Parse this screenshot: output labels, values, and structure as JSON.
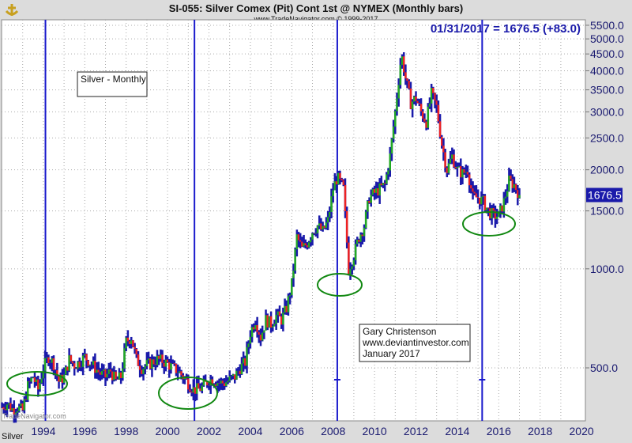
{
  "header": {
    "title": "SI-055:  Silver Comex (Pit) Cont 1st @ NYMEX  (Monthly bars)",
    "copyright": "www.TradeNavigator.com © 1999-2017",
    "last_readout": "01/31/2017 = 1676.5 (+83.0)",
    "watermark": "TradeNavigator.com",
    "symbol_label": "Silver"
  },
  "annotations": {
    "label_box": "Silver - Monthly",
    "author_lines": [
      "Gary Christenson",
      "www.deviantinvestor.com",
      "January 2017"
    ]
  },
  "colors": {
    "up": "#22aa22",
    "down": "#ee2222",
    "bar": "#1a1aaa",
    "marker_line": "#1a1acc",
    "circle": "#118811",
    "axis_text": "#1a1a70"
  },
  "chart_data": {
    "type": "ohlc-bar",
    "scale": "log",
    "title": "SI-055: Silver Comex (Pit) Cont 1st @ NYMEX (Monthly bars)",
    "ylim": [
      330,
      5700
    ],
    "xlim": [
      1992.0,
      2020.0
    ],
    "y_ticks": [
      "500.0",
      "1000.0",
      "1500.0",
      "2000.0",
      "2500.0",
      "3000.0",
      "3500.0",
      "4000.0",
      "4500.0",
      "5000.0",
      "5500.0"
    ],
    "x_ticks": [
      "1994",
      "1996",
      "1998",
      "2000",
      "2002",
      "2004",
      "2006",
      "2008",
      "2010",
      "2012",
      "2014",
      "2016",
      "2018",
      "2020"
    ],
    "last_value": "1676.5",
    "vertical_markers": [
      1994.1,
      2001.3,
      2008.2,
      2015.2
    ],
    "circled_lows": [
      {
        "x": 1994.6,
        "y": 435
      },
      {
        "x": 2001.2,
        "y": 420
      },
      {
        "x": 2008.2,
        "y": 900
      },
      {
        "x": 2015.4,
        "y": 1440
      }
    ],
    "approx_closes": [
      [
        1992.0,
        380
      ],
      [
        1992.25,
        390
      ],
      [
        1992.5,
        375
      ],
      [
        1992.75,
        380
      ],
      [
        1993.0,
        370
      ],
      [
        1993.25,
        440
      ],
      [
        1993.5,
        470
      ],
      [
        1993.75,
        430
      ],
      [
        1994.0,
        500
      ],
      [
        1994.25,
        540
      ],
      [
        1994.5,
        515
      ],
      [
        1994.75,
        455
      ],
      [
        1995.0,
        470
      ],
      [
        1995.25,
        530
      ],
      [
        1995.5,
        510
      ],
      [
        1995.75,
        520
      ],
      [
        1996.0,
        540
      ],
      [
        1996.25,
        520
      ],
      [
        1996.5,
        500
      ],
      [
        1996.75,
        480
      ],
      [
        1997.0,
        470
      ],
      [
        1997.25,
        490
      ],
      [
        1997.5,
        455
      ],
      [
        1997.75,
        470
      ],
      [
        1998.0,
        600
      ],
      [
        1998.25,
        620
      ],
      [
        1998.5,
        530
      ],
      [
        1998.75,
        500
      ],
      [
        1999.0,
        510
      ],
      [
        1999.25,
        520
      ],
      [
        1999.5,
        530
      ],
      [
        1999.75,
        525
      ],
      [
        2000.0,
        515
      ],
      [
        2000.25,
        500
      ],
      [
        2000.5,
        490
      ],
      [
        2000.75,
        470
      ],
      [
        2001.0,
        450
      ],
      [
        2001.25,
        430
      ],
      [
        2001.5,
        430
      ],
      [
        2001.75,
        440
      ],
      [
        2002.0,
        460
      ],
      [
        2002.25,
        460
      ],
      [
        2002.5,
        450
      ],
      [
        2002.75,
        450
      ],
      [
        2003.0,
        460
      ],
      [
        2003.25,
        470
      ],
      [
        2003.5,
        500
      ],
      [
        2003.75,
        520
      ],
      [
        2004.0,
        640
      ],
      [
        2004.25,
        700
      ],
      [
        2004.5,
        620
      ],
      [
        2004.75,
        700
      ],
      [
        2005.0,
        680
      ],
      [
        2005.25,
        720
      ],
      [
        2005.5,
        700
      ],
      [
        2005.75,
        760
      ],
      [
        2006.0,
        900
      ],
      [
        2006.25,
        1250
      ],
      [
        2006.5,
        1150
      ],
      [
        2006.75,
        1200
      ],
      [
        2007.0,
        1300
      ],
      [
        2007.25,
        1350
      ],
      [
        2007.5,
        1300
      ],
      [
        2007.75,
        1400
      ],
      [
        2008.0,
        1750
      ],
      [
        2008.2,
        1900
      ],
      [
        2008.5,
        1750
      ],
      [
        2008.75,
        1000
      ],
      [
        2009.0,
        1100
      ],
      [
        2009.25,
        1250
      ],
      [
        2009.5,
        1350
      ],
      [
        2009.75,
        1650
      ],
      [
        2010.0,
        1700
      ],
      [
        2010.25,
        1750
      ],
      [
        2010.5,
        1800
      ],
      [
        2010.75,
        2200
      ],
      [
        2011.0,
        3000
      ],
      [
        2011.3,
        4500
      ],
      [
        2011.5,
        3800
      ],
      [
        2011.75,
        3200
      ],
      [
        2012.0,
        3300
      ],
      [
        2012.25,
        3000
      ],
      [
        2012.5,
        2800
      ],
      [
        2012.75,
        3400
      ],
      [
        2013.0,
        3100
      ],
      [
        2013.25,
        2400
      ],
      [
        2013.5,
        2000
      ],
      [
        2013.75,
        2200
      ],
      [
        2014.0,
        2000
      ],
      [
        2014.25,
        1950
      ],
      [
        2014.5,
        2000
      ],
      [
        2014.75,
        1650
      ],
      [
        2015.0,
        1650
      ],
      [
        2015.25,
        1600
      ],
      [
        2015.5,
        1500
      ],
      [
        2015.75,
        1450
      ],
      [
        2016.0,
        1450
      ],
      [
        2016.25,
        1600
      ],
      [
        2016.5,
        1850
      ],
      [
        2016.75,
        1800
      ],
      [
        2017.0,
        1676.5
      ]
    ]
  }
}
